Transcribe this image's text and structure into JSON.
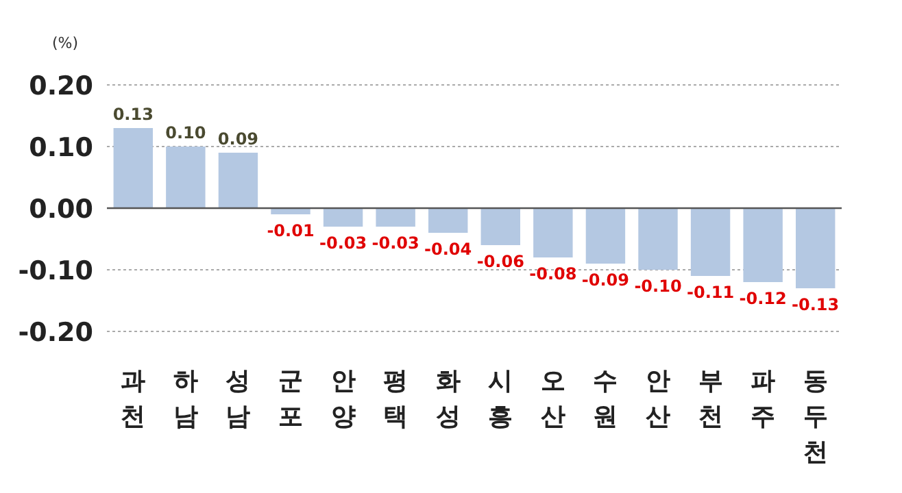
{
  "chart_data": {
    "type": "bar",
    "ylabel": "(%)",
    "categories": [
      "과천",
      "하남",
      "성남",
      "군포",
      "안양",
      "평택",
      "화성",
      "시흥",
      "오산",
      "수원",
      "안산",
      "부천",
      "파주",
      "동두천"
    ],
    "values": [
      0.13,
      0.1,
      0.09,
      -0.01,
      -0.03,
      -0.03,
      -0.04,
      -0.06,
      -0.08,
      -0.09,
      -0.1,
      -0.11,
      -0.12,
      -0.13
    ],
    "value_labels": [
      "0.13",
      "0.10",
      "0.09",
      "-0.01",
      "-0.03",
      "-0.03",
      "-0.04",
      "-0.06",
      "-0.08",
      "-0.09",
      "-0.10",
      "-0.11",
      "-0.12",
      "-0.13"
    ],
    "color": "#b4c8e2",
    "ylim": [
      -0.2,
      0.2
    ],
    "yticks": [
      {
        "value": 0.2,
        "label": "0.20"
      },
      {
        "value": 0.1,
        "label": "0.10"
      },
      {
        "value": 0,
        "label": "0.00"
      },
      {
        "value": -0.1,
        "label": "-0.10"
      },
      {
        "value": -0.2,
        "label": "-0.20"
      }
    ],
    "grid": "y"
  }
}
